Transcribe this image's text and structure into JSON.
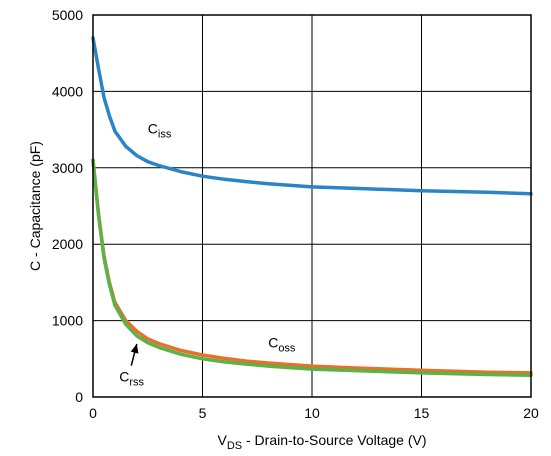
{
  "chart_data": {
    "type": "line",
    "xlabel": {
      "main": "V",
      "sub": "DS",
      "rest": " - Drain-to-Source Voltage (V)"
    },
    "ylabel": "C - Capacitance (pF)",
    "xlim": [
      0,
      20
    ],
    "ylim": [
      0,
      5000
    ],
    "xticks": [
      0,
      5,
      10,
      15,
      20
    ],
    "yticks": [
      0,
      1000,
      2000,
      3000,
      4000,
      5000
    ],
    "grid": true,
    "series": [
      {
        "name": "Ciss",
        "label_main": "C",
        "label_sub": "iss",
        "color": "#2b84c6",
        "x": [
          0,
          0.25,
          0.5,
          0.75,
          1,
          1.5,
          2,
          2.5,
          3,
          4,
          5,
          6,
          7,
          8,
          10,
          12,
          15,
          18,
          20
        ],
        "y": [
          4700,
          4300,
          3920,
          3680,
          3480,
          3280,
          3160,
          3080,
          3030,
          2950,
          2890,
          2850,
          2820,
          2790,
          2750,
          2730,
          2700,
          2680,
          2660
        ]
      },
      {
        "name": "Coss",
        "label_main": "C",
        "label_sub": "oss",
        "color": "#e8702a",
        "x": [
          0,
          0.25,
          0.5,
          0.75,
          1,
          1.5,
          2,
          2.5,
          3,
          4,
          5,
          6,
          7,
          8,
          10,
          12,
          15,
          18,
          20
        ],
        "y": [
          3100,
          2400,
          1850,
          1500,
          1240,
          1000,
          860,
          760,
          700,
          610,
          550,
          505,
          470,
          445,
          405,
          380,
          350,
          325,
          315
        ]
      },
      {
        "name": "Crss",
        "label_main": "C",
        "label_sub": "rss",
        "color": "#5cb247",
        "x": [
          0,
          0.25,
          0.5,
          0.75,
          1,
          1.5,
          2,
          2.5,
          3,
          4,
          5,
          6,
          7,
          8,
          10,
          12,
          15,
          18,
          20
        ],
        "y": [
          3100,
          2380,
          1820,
          1470,
          1200,
          950,
          800,
          710,
          650,
          560,
          500,
          460,
          430,
          405,
          365,
          345,
          315,
          295,
          285
        ]
      }
    ],
    "annotations": [
      {
        "series": "Ciss",
        "at_x": 2.5,
        "at_y": 3450
      },
      {
        "series": "Coss",
        "at_x": 8.0,
        "at_y": 650
      },
      {
        "series": "Crss",
        "at_x": 1.2,
        "at_y": 200,
        "arrow_to": [
          2.0,
          800
        ]
      }
    ]
  }
}
